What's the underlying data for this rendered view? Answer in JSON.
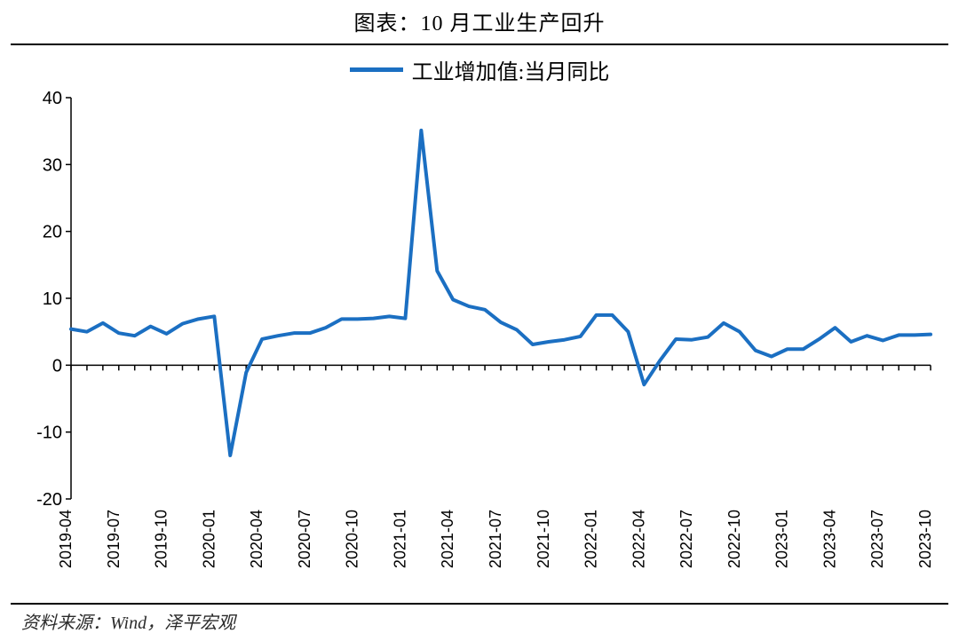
{
  "title": "图表：10 月工业生产回升",
  "source": "资料来源：Wind，泽平宏观",
  "chart": {
    "type": "line",
    "background_color": "#ffffff",
    "axis_color": "#000000",
    "tick_length": 6,
    "ylim": [
      -20,
      40
    ],
    "ytick_step": 10,
    "yticks": [
      -20,
      -10,
      0,
      10,
      20,
      30,
      40
    ],
    "x_labels": [
      "2019-04",
      "2019-07",
      "2019-10",
      "2020-01",
      "2020-04",
      "2020-07",
      "2020-10",
      "2021-01",
      "2021-04",
      "2021-07",
      "2021-10",
      "2022-01",
      "2022-04",
      "2022-07",
      "2022-10",
      "2023-01",
      "2023-04",
      "2023-07",
      "2023-10"
    ],
    "x_label_every": 3,
    "y_label_fontsize": 20,
    "x_label_fontsize": 18,
    "line_width": 4,
    "legend": {
      "label": "工业增加值:当月同比",
      "color": "#1b6fc2",
      "fontsize": 24,
      "line_width": 5
    },
    "series": {
      "name": "工业增加值:当月同比",
      "color": "#1b6fc2",
      "months": [
        "2019-04",
        "2019-05",
        "2019-06",
        "2019-07",
        "2019-08",
        "2019-09",
        "2019-10",
        "2019-11",
        "2019-12",
        "2020-01",
        "2020-02",
        "2020-03",
        "2020-04",
        "2020-05",
        "2020-06",
        "2020-07",
        "2020-08",
        "2020-09",
        "2020-10",
        "2020-11",
        "2020-12",
        "2021-01",
        "2021-02",
        "2021-03",
        "2021-04",
        "2021-05",
        "2021-06",
        "2021-07",
        "2021-08",
        "2021-09",
        "2021-10",
        "2021-11",
        "2021-12",
        "2022-01",
        "2022-02",
        "2022-03",
        "2022-04",
        "2022-05",
        "2022-06",
        "2022-07",
        "2022-08",
        "2022-09",
        "2022-10",
        "2022-11",
        "2022-12",
        "2023-01",
        "2023-02",
        "2023-03",
        "2023-04",
        "2023-05",
        "2023-06",
        "2023-07",
        "2023-08",
        "2023-09",
        "2023-10"
      ],
      "values": [
        5.4,
        5.0,
        6.3,
        4.8,
        4.4,
        5.8,
        4.7,
        6.2,
        6.9,
        7.3,
        -13.5,
        -1.1,
        3.9,
        4.4,
        4.8,
        4.8,
        5.6,
        6.9,
        6.9,
        7.0,
        7.3,
        7.0,
        35.1,
        14.1,
        9.8,
        8.8,
        8.3,
        6.4,
        5.3,
        3.1,
        3.5,
        3.8,
        4.3,
        7.5,
        7.5,
        5.0,
        -2.9,
        0.7,
        3.9,
        3.8,
        4.2,
        6.3,
        5.0,
        2.2,
        1.3,
        2.4,
        2.4,
        3.9,
        5.6,
        3.5,
        4.4,
        3.7,
        4.5,
        4.5,
        4.6
      ]
    }
  }
}
